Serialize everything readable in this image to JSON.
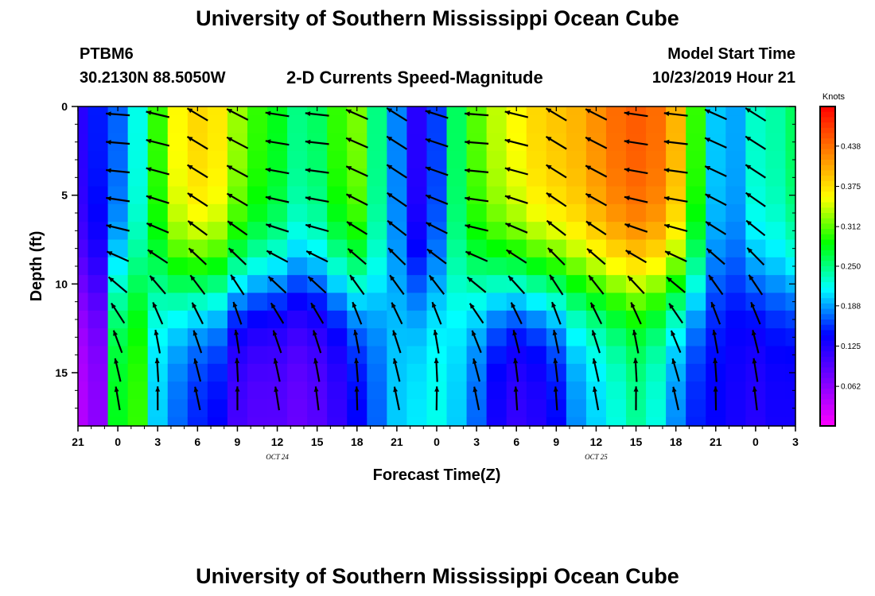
{
  "header": {
    "title": "University of Southern Mississippi Ocean Cube",
    "station": "PTBM6",
    "coords": "30.2130N 88.5050W",
    "subtitle": "2-D Currents Speed-Magnitude",
    "model_start_label": "Model Start Time",
    "model_start_value": "10/23/2019 Hour 21"
  },
  "footer": {
    "title": "University of Southern Mississippi Ocean Cube"
  },
  "chart_data": {
    "type": "heatmap",
    "title": "2-D Currents Speed-Magnitude",
    "xlabel": "Forecast Time(Z)",
    "ylabel": "Depth (ft)",
    "x_ticks": [
      "21",
      "0",
      "3",
      "6",
      "9",
      "12",
      "15",
      "18",
      "21",
      "0",
      "3",
      "6",
      "9",
      "12",
      "15",
      "18",
      "21",
      "0",
      "3"
    ],
    "x_hours": [
      0,
      3,
      6,
      9,
      12,
      15,
      18,
      21,
      24,
      27,
      30,
      33,
      36,
      39,
      42,
      45,
      48,
      51,
      54
    ],
    "date_labels": [
      {
        "text": "OCT 24",
        "hour": 15
      },
      {
        "text": "OCT 25",
        "hour": 39
      }
    ],
    "y_ticks": [
      "0",
      "5",
      "10",
      "15"
    ],
    "y_tick_values": [
      0,
      5,
      10,
      15
    ],
    "ylim": [
      0,
      18
    ],
    "colorbar": {
      "unit": "Knots",
      "ticks": [
        "0.438",
        "0.375",
        "0.312",
        "0.250",
        "0.188",
        "0.125",
        "0.062"
      ],
      "tick_values": [
        0.438,
        0.375,
        0.312,
        0.25,
        0.188,
        0.125,
        0.062
      ],
      "range": [
        0,
        0.5
      ],
      "colors": [
        "#ff00ff",
        "#7a00ff",
        "#0000ff",
        "#00ffff",
        "#00ff00",
        "#ffff00",
        "#ff7f00",
        "#ff0000"
      ]
    },
    "time_hours": [
      0,
      1.5,
      3,
      4.5,
      6,
      7.5,
      9,
      10.5,
      12,
      13.5,
      15,
      16.5,
      18,
      19.5,
      21,
      22.5,
      24,
      25.5,
      27,
      28.5,
      30,
      31.5,
      33,
      34.5,
      36,
      37.5,
      39,
      40.5,
      42,
      43.5,
      45,
      46.5,
      48,
      49.5,
      51,
      52.5,
      54
    ],
    "depth_ft": [
      0,
      1,
      2,
      3,
      4,
      5,
      6,
      7,
      8,
      9,
      10,
      11,
      12,
      13,
      14,
      15,
      16,
      17,
      18
    ],
    "surface_speed_kn": [
      0.12,
      0.15,
      0.17,
      0.22,
      0.3,
      0.36,
      0.38,
      0.37,
      0.33,
      0.3,
      0.28,
      0.25,
      0.26,
      0.3,
      0.32,
      0.25,
      0.18,
      0.12,
      0.16,
      0.26,
      0.31,
      0.34,
      0.36,
      0.38,
      0.39,
      0.4,
      0.42,
      0.44,
      0.45,
      0.44,
      0.4,
      0.3,
      0.2,
      0.19,
      0.23,
      0.24,
      0.26
    ],
    "bottom_speed_kn": [
      0.04,
      0.06,
      0.28,
      0.3,
      0.2,
      0.17,
      0.15,
      0.14,
      0.1,
      0.09,
      0.09,
      0.08,
      0.09,
      0.11,
      0.14,
      0.17,
      0.2,
      0.21,
      0.22,
      0.2,
      0.17,
      0.13,
      0.11,
      0.12,
      0.14,
      0.18,
      0.2,
      0.22,
      0.24,
      0.22,
      0.18,
      0.15,
      0.14,
      0.13,
      0.12,
      0.13,
      0.13
    ],
    "vectors_direction": "predominantly toward NW/W near surface, toward N at depth"
  }
}
